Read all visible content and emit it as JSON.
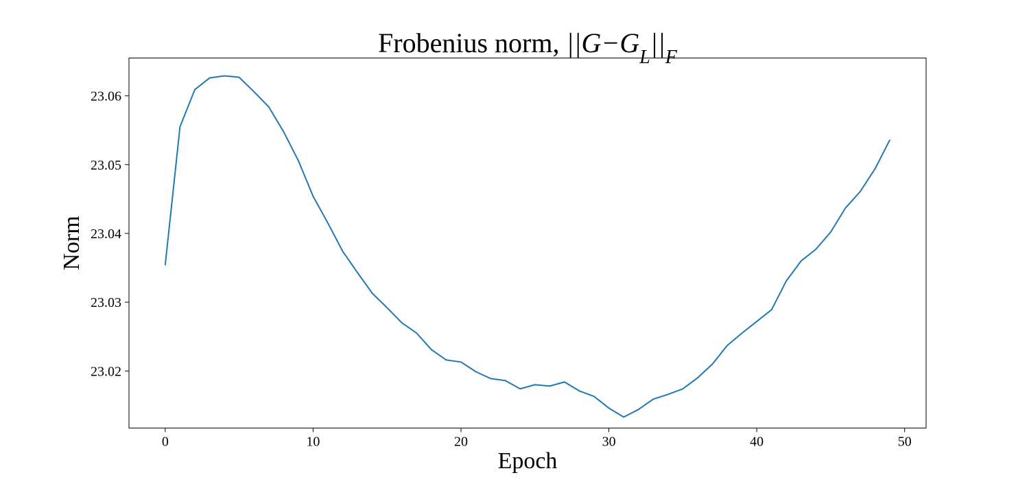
{
  "chart_data": {
    "type": "line",
    "title": "Frobenius norm, ",
    "title_math": "||G−G_L||_F",
    "xlabel": "Epoch",
    "ylabel": "Norm",
    "xlim": [
      -2.45,
      51.45
    ],
    "ylim": [
      23.0117,
      23.0655
    ],
    "x_ticks": [
      0,
      10,
      20,
      30,
      40,
      50
    ],
    "y_ticks": [
      23.02,
      23.03,
      23.04,
      23.05,
      23.06
    ],
    "x_tick_labels": [
      "0",
      "10",
      "20",
      "30",
      "40",
      "50"
    ],
    "y_tick_labels": [
      "23.02",
      "23.03",
      "23.04",
      "23.05",
      "23.06"
    ],
    "grid": false,
    "series": [
      {
        "color": "#1f77b4",
        "x": [
          0,
          1,
          2,
          3,
          4,
          5,
          6,
          7,
          8,
          9,
          10,
          11,
          12,
          13,
          14,
          15,
          16,
          17,
          18,
          19,
          20,
          21,
          22,
          23,
          24,
          25,
          26,
          27,
          28,
          29,
          30,
          31,
          32,
          33,
          34,
          35,
          36,
          37,
          38,
          39,
          40,
          41,
          42,
          43,
          44,
          45,
          46,
          47,
          48,
          49
        ],
        "y": [
          23.0354,
          23.0555,
          23.0609,
          23.0626,
          23.0629,
          23.0627,
          23.0606,
          23.0584,
          23.0548,
          23.0506,
          23.0454,
          23.0415,
          23.0374,
          23.0343,
          23.0313,
          23.0292,
          23.027,
          23.0255,
          23.0231,
          23.0216,
          23.0213,
          23.0199,
          23.0189,
          23.0186,
          23.0174,
          23.018,
          23.0178,
          23.0184,
          23.0171,
          23.0163,
          23.0146,
          23.0133,
          23.0144,
          23.0159,
          23.0166,
          23.0174,
          23.019,
          23.021,
          23.0237,
          23.0255,
          23.0272,
          23.0289,
          23.0331,
          23.036,
          23.0377,
          23.0402,
          23.0437,
          23.0461,
          23.0494,
          23.0536
        ]
      }
    ]
  }
}
